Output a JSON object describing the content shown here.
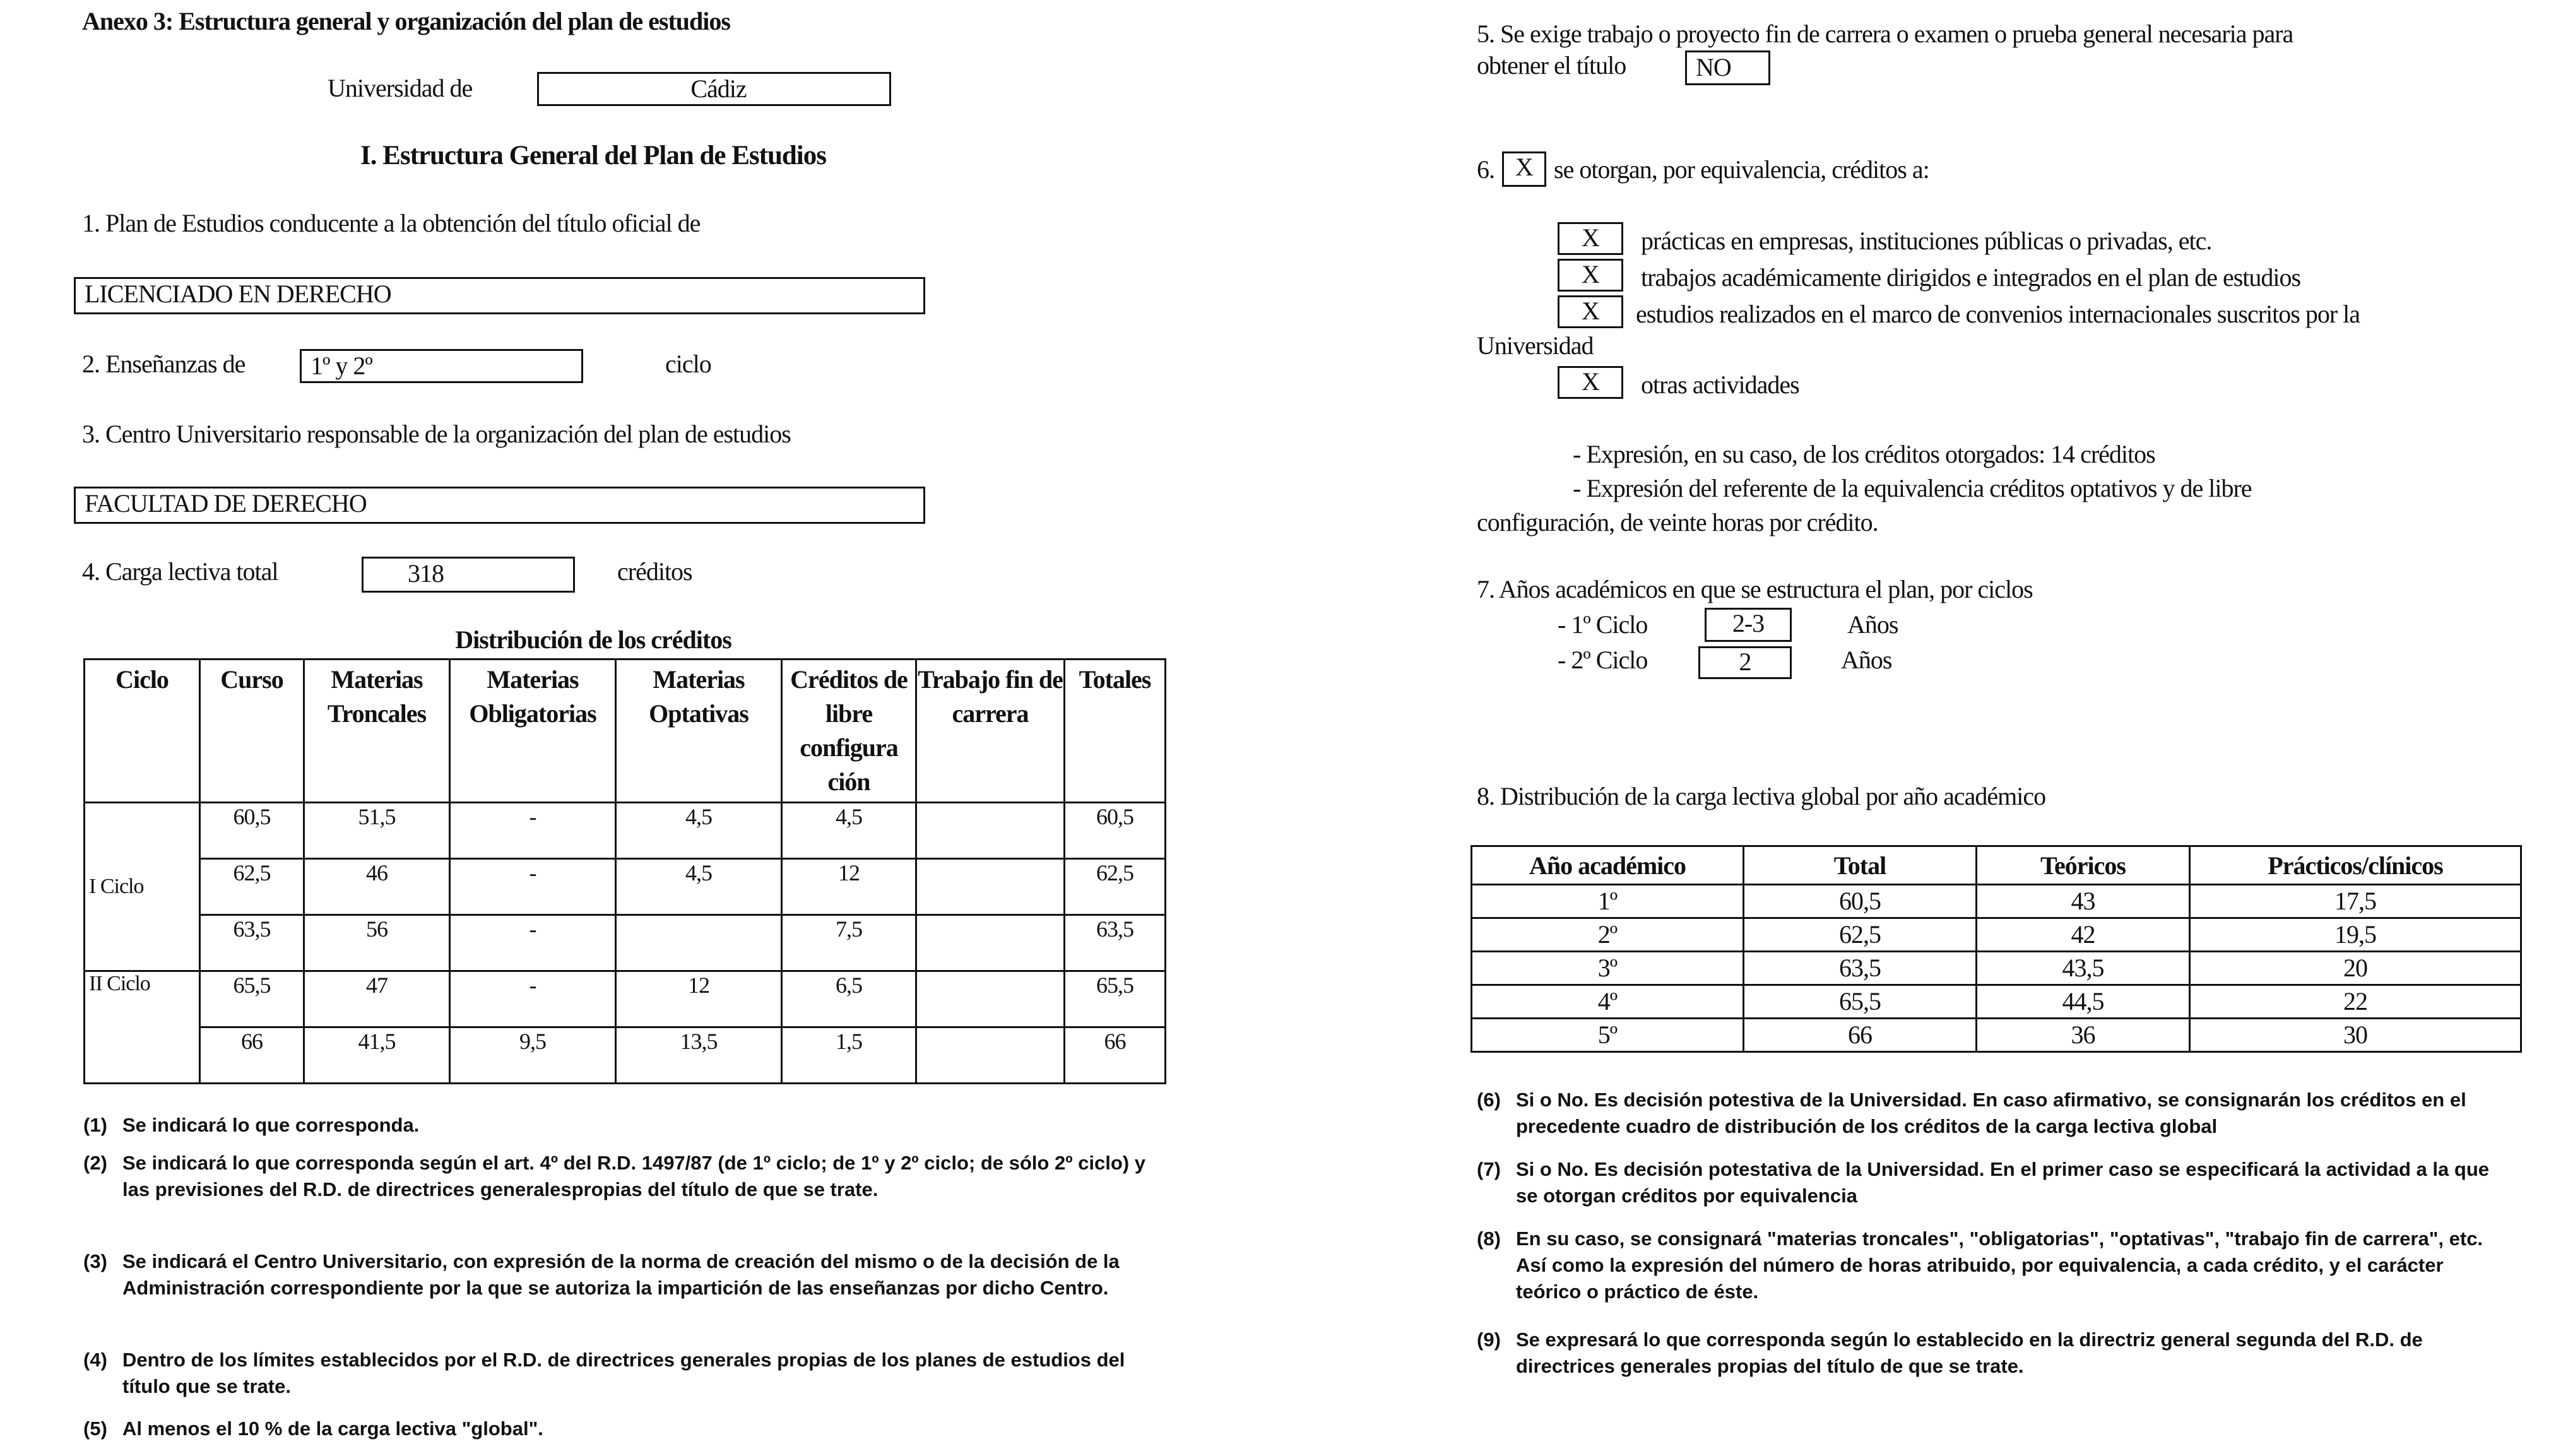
{
  "left": {
    "annex_title": "Anexo 3: Estructura general y organización del plan de estudios",
    "university_label": "Universidad de",
    "university_value": "Cádiz",
    "section_title": "I. Estructura General del Plan de Estudios",
    "q1_label": "1. Plan de Estudios conducente a la obtención del título oficial de",
    "q1_value": "LICENCIADO EN DERECHO",
    "q2_label": "2. Enseñanzas de",
    "q2_value": "1º y 2º",
    "q2_suffix": "ciclo",
    "q3_label": "3. Centro Universitario responsable de la organización del plan de estudios",
    "q3_value": "FACULTAD DE DERECHO",
    "q4_label": "4. Carga lectiva total",
    "q4_value": "318",
    "q4_suffix": "créditos",
    "dist_title": "Distribución de los créditos",
    "dist_table": {
      "headers": [
        "Ciclo",
        "Curso",
        "Materias Troncales",
        "Materias Obligatorias",
        "Materias Optativas",
        "Créditos de libre configura ción",
        "Trabajo fin de carrera",
        "Totales"
      ],
      "cycles": [
        "I Ciclo",
        "II Ciclo"
      ],
      "rows": [
        [
          "60,5",
          "51,5",
          "-",
          "4,5",
          "4,5",
          "",
          "60,5"
        ],
        [
          "62,5",
          "46",
          "-",
          "4,5",
          "12",
          "",
          "62,5"
        ],
        [
          "63,5",
          "56",
          "-",
          "",
          "7,5",
          "",
          "63,5"
        ],
        [
          "65,5",
          "47",
          "-",
          "12",
          "6,5",
          "",
          "65,5"
        ],
        [
          "66",
          "41,5",
          "9,5",
          "13,5",
          "1,5",
          "",
          "66"
        ]
      ]
    },
    "footnotes": [
      {
        "n": "(1)",
        "t": "Se indicará lo que corresponda."
      },
      {
        "n": "(2)",
        "t": "Se indicará lo que corresponda según el art. 4º del R.D. 1497/87 (de 1º ciclo; de 1º y 2º ciclo; de sólo 2º ciclo) y las previsiones del R.D. de directrices generalespropias del título de que se trate."
      },
      {
        "n": "(3)",
        "t": "Se indicará el Centro Universitario, con expresión de la norma de creación del mismo o de la decisión de la Administración correspondiente por la que se autoriza la impartición de las enseñanzas por dicho Centro."
      },
      {
        "n": "(4)",
        "t": "Dentro de los límites establecidos por el R.D. de directrices generales propias de los planes de estudios del título que se trate."
      },
      {
        "n": "(5)",
        "t": "Al menos el 10 % de la carga lectiva \"global\"."
      }
    ]
  },
  "right": {
    "q5_line1": "5. Se exige trabajo o proyecto fin de carrera o examen o prueba general necesaria para",
    "q5_line2": "obtener el título",
    "q5_value": "NO",
    "q6_value": "X",
    "q6_label": "se otorgan, por equivalencia, créditos a:",
    "q6_items": [
      {
        "mark": "X",
        "label": "prácticas en empresas, instituciones públicas o privadas, etc."
      },
      {
        "mark": "X",
        "label": "trabajos académicamente dirigidos e integrados en el plan de estudios"
      },
      {
        "mark": "X",
        "label": "estudios realizados en el marco de convenios internacionales suscritos por la"
      },
      {
        "mark": "X",
        "label": "otras actividades"
      }
    ],
    "q6_wrap": "Universidad",
    "q6_expr1": "- Expresión, en su caso, de los créditos otorgados:  14    créditos",
    "q6_expr2": "- Expresión del referente de la equivalencia créditos optativos y de libre",
    "q6_expr3": "configuración, de veinte horas por crédito.",
    "q7_label": "7. Años académicos en que se estructura el plan, por ciclos",
    "q7_rows": [
      {
        "label": "- 1º Ciclo",
        "value": "2-3",
        "unit": "Años"
      },
      {
        "label": "- 2º Ciclo",
        "value": "2",
        "unit": "Años"
      }
    ],
    "q8_label": "8. Distribución de la carga lectiva global por año académico",
    "load_table": {
      "headers": [
        "Año académico",
        "Total",
        "Teóricos",
        "Prácticos/clínicos"
      ],
      "rows": [
        [
          "1º",
          "60,5",
          "43",
          "17,5"
        ],
        [
          "2º",
          "62,5",
          "42",
          "19,5"
        ],
        [
          "3º",
          "63,5",
          "43,5",
          "20"
        ],
        [
          "4º",
          "65,5",
          "44,5",
          "22"
        ],
        [
          "5º",
          "66",
          "36",
          "30"
        ]
      ]
    },
    "footnotes": [
      {
        "n": "(6)",
        "t": "Si o No. Es decisión potestiva de la Universidad. En caso afirmativo, se consignarán los créditos en el precedente cuadro de distribución de los créditos de la carga lectiva global"
      },
      {
        "n": "(7)",
        "t": "Si o No. Es decisión potestativa de la Universidad. En el primer caso se especificará la actividad a la que se otorgan créditos por equivalencia"
      },
      {
        "n": "(8)",
        "t": "En su caso, se consignará \"materias troncales\", \"obligatorias\", \"optativas\", \"trabajo fin de carrera\", etc. Así como la expresión del número de horas atribuido, por equivalencia, a cada crédito, y el carácter teórico o práctico de éste."
      },
      {
        "n": "(9)",
        "t": "Se expresará lo que corresponda según lo establecido en la directriz general segunda del R.D. de directrices generales propias del título de que se trate."
      }
    ]
  }
}
